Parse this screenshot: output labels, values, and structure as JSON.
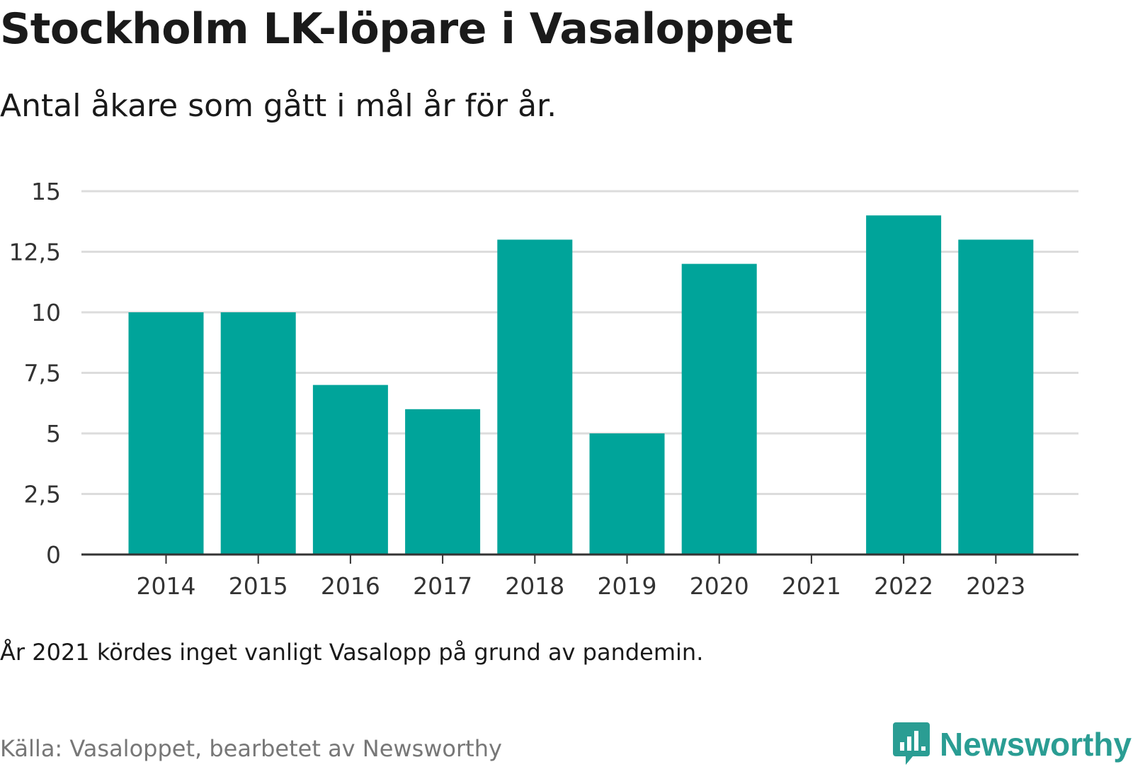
{
  "header": {
    "title": "Stockholm LK-löpare i Vasaloppet",
    "subtitle": "Antal åkare som gått i mål år för år."
  },
  "chart_data": {
    "type": "bar",
    "categories": [
      "2014",
      "2015",
      "2016",
      "2017",
      "2018",
      "2019",
      "2020",
      "2021",
      "2022",
      "2023"
    ],
    "values": [
      10,
      10,
      7,
      6,
      13,
      5,
      12,
      null,
      14,
      13
    ],
    "title": "Stockholm LK-löpare i Vasaloppet",
    "subtitle": "Antal åkare som gått i mål år för år.",
    "xlabel": "",
    "ylabel": "",
    "ylim": [
      0,
      15
    ],
    "yticks": [
      0,
      2.5,
      5,
      7.5,
      10,
      12.5,
      15
    ],
    "ytick_labels": [
      "0",
      "2,5",
      "5",
      "7,5",
      "10",
      "12,5",
      "15"
    ],
    "grid": true,
    "bar_color": "#00a49a"
  },
  "footer": {
    "note": "År 2021 kördes inget vanligt Vasalopp på grund av pandemin.",
    "source": "Källa: Vasaloppet, bearbetet av Newsworthy",
    "brand": "Newsworthy",
    "brand_icon": "newsworthy-logo-icon",
    "brand_color": "#2a9d93"
  }
}
